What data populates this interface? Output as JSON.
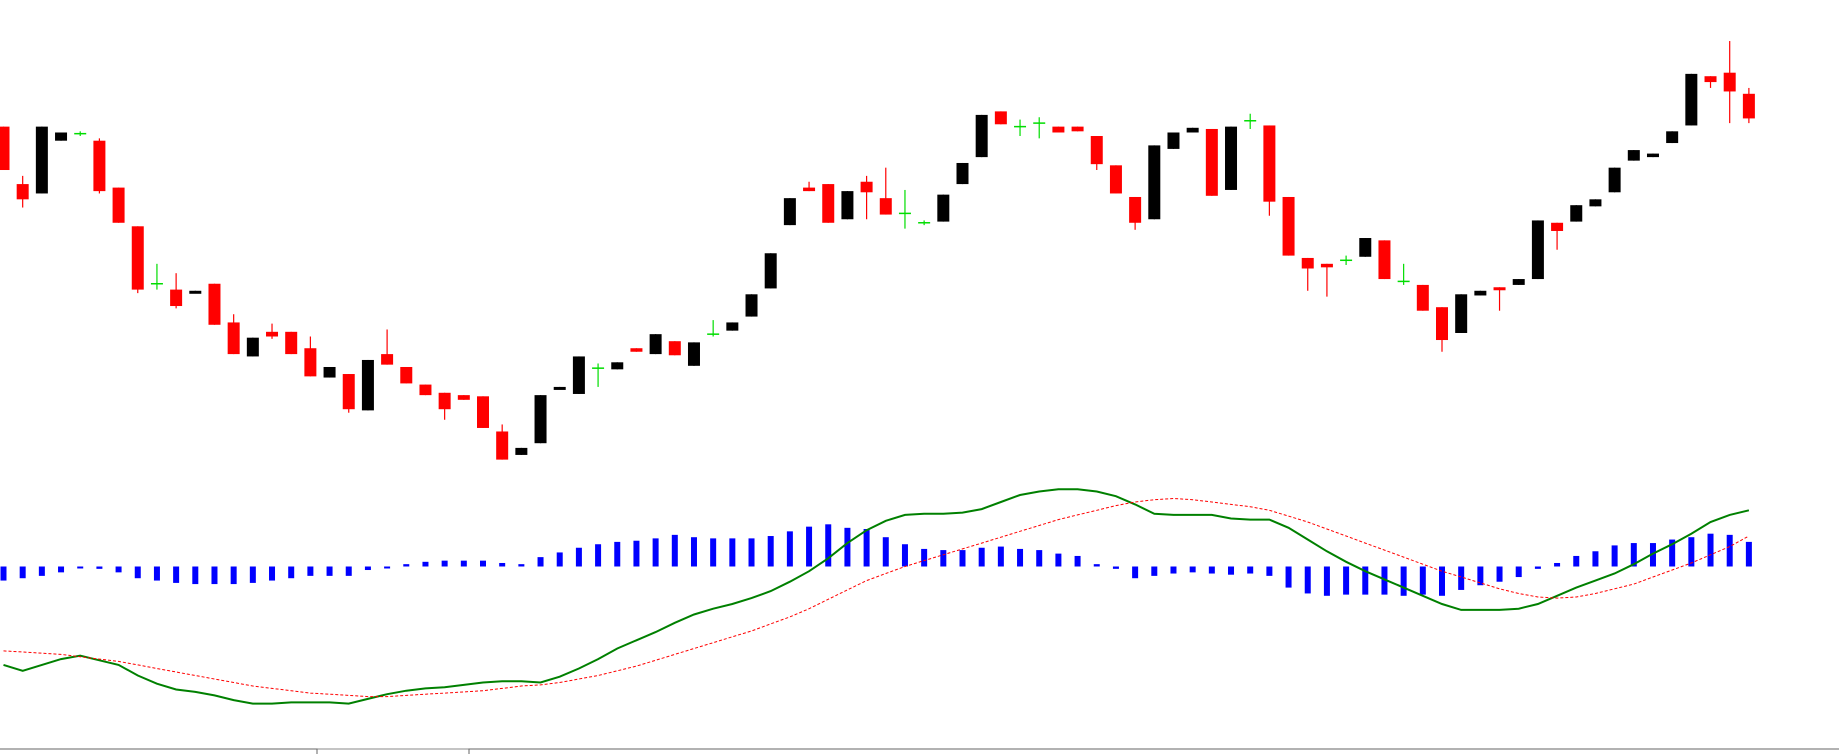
{
  "chart_data": [
    {
      "type": "candlestick",
      "ylim": [
        0,
        400
      ],
      "up_color": "#000000",
      "down_color": "#ff0000",
      "doji_color": "#00dd00",
      "open": [
        292,
        243,
        235,
        280,
        286,
        280,
        240,
        207,
        158,
        153,
        150,
        158,
        125,
        96,
        117,
        117,
        103,
        78,
        81,
        50,
        98,
        87,
        72,
        65,
        63,
        62,
        32,
        12,
        22,
        69,
        64,
        86,
        85,
        103,
        98,
        109,
        88,
        115,
        118,
        130,
        154,
        208,
        240,
        243,
        213,
        245,
        231,
        218,
        210,
        211,
        243,
        266,
        305,
        292,
        295,
        292,
        292,
        284,
        259,
        232,
        213,
        273,
        287,
        290,
        238,
        297,
        293,
        232,
        180,
        175,
        178,
        181,
        195,
        160,
        157,
        138,
        116,
        148,
        155,
        157,
        162,
        210,
        211,
        224,
        236,
        263,
        266,
        278,
        293,
        335,
        338,
        320
      ],
      "high": [
        292,
        250,
        292,
        287,
        288,
        282,
        240,
        207,
        175,
        167,
        152,
        158,
        132,
        112,
        124,
        117,
        113,
        87,
        81,
        93,
        119,
        87,
        72,
        65,
        63,
        62,
        38,
        18,
        63,
        70,
        96,
        90,
        91,
        103,
        115,
        109,
        108,
        127,
        125,
        149,
        184,
        231,
        245,
        243,
        237,
        250,
        257,
        238,
        212,
        234,
        261,
        302,
        305,
        298,
        300,
        292,
        292,
        284,
        259,
        232,
        276,
        287,
        291,
        290,
        292,
        303,
        293,
        232,
        180,
        175,
        182,
        197,
        195,
        175,
        157,
        138,
        149,
        152,
        155,
        162,
        212,
        210,
        225,
        230,
        257,
        272,
        269,
        288,
        337,
        335,
        365,
        325
      ],
      "low": [
        255,
        223,
        235,
        280,
        284,
        235,
        210,
        150,
        153,
        137,
        150,
        123,
        98,
        96,
        111,
        98,
        79,
        78,
        48,
        50,
        89,
        73,
        63,
        42,
        59,
        35,
        8,
        12,
        22,
        69,
        64,
        70,
        85,
        100,
        98,
        97,
        88,
        113,
        118,
        130,
        154,
        208,
        237,
        210,
        213,
        213,
        217,
        205,
        208,
        211,
        243,
        266,
        294,
        284,
        282,
        287,
        288,
        255,
        235,
        204,
        213,
        273,
        287,
        233,
        238,
        290,
        216,
        182,
        152,
        147,
        174,
        181,
        162,
        157,
        135,
        100,
        116,
        148,
        135,
        157,
        162,
        187,
        211,
        224,
        236,
        263,
        266,
        278,
        293,
        325,
        295,
        295
      ],
      "close": [
        255,
        230,
        292,
        287,
        286,
        237,
        210,
        153,
        158,
        139,
        152,
        123,
        98,
        112,
        113,
        98,
        79,
        87,
        51,
        93,
        89,
        73,
        63,
        51,
        59,
        35,
        8,
        18,
        63,
        70,
        96,
        86,
        91,
        100,
        115,
        97,
        108,
        115,
        125,
        149,
        184,
        231,
        237,
        210,
        237,
        236,
        217,
        218,
        210,
        234,
        261,
        302,
        294,
        292,
        295,
        287,
        288,
        260,
        235,
        210,
        276,
        287,
        291,
        233,
        292,
        297,
        228,
        182,
        171,
        172,
        178,
        197,
        162,
        160,
        135,
        110,
        149,
        152,
        154,
        162,
        212,
        203,
        225,
        230,
        257,
        272,
        269,
        288,
        337,
        330,
        322,
        299
      ]
    },
    {
      "type": "macd",
      "ylim": [
        -160,
        160
      ],
      "histogram": {
        "color": "#0000ff",
        "values": [
          -12,
          -10,
          -8,
          -5,
          -1,
          -2,
          -5,
          -10,
          -12,
          -14,
          -15,
          -15,
          -15,
          -14,
          -12,
          -10,
          -8,
          -8,
          -8,
          -3,
          -1,
          2,
          4,
          5,
          5,
          5,
          3,
          2,
          8,
          12,
          16,
          19,
          21,
          22,
          24,
          27,
          25,
          24,
          24,
          24,
          26,
          30,
          34,
          36,
          33,
          32,
          25,
          19,
          15,
          14,
          14,
          16,
          17,
          15,
          14,
          11,
          9,
          2,
          -2,
          -10,
          -8,
          -6,
          -5,
          -6,
          -7,
          -6,
          -8,
          -18,
          -23,
          -25,
          -24,
          -24,
          -24,
          -25,
          -24,
          -25,
          -20,
          -16,
          -13,
          -9,
          -2,
          3,
          9,
          13,
          18,
          20,
          20,
          23,
          25,
          28,
          27,
          21
        ]
      },
      "series": [
        {
          "color": "#008000",
          "dashed": false,
          "values": [
            -84,
            -89,
            -84,
            -79,
            -76,
            -80,
            -84,
            -93,
            -100,
            -105,
            -107,
            -110,
            -114,
            -117,
            -117,
            -116,
            -116,
            -116,
            -117,
            -113,
            -109,
            -106,
            -104,
            -103,
            -101,
            -99,
            -98,
            -98,
            -99,
            -94,
            -87,
            -79,
            -70,
            -63,
            -56,
            -48,
            -41,
            -36,
            -32,
            -27,
            -21,
            -13,
            -4,
            7,
            20,
            31,
            39,
            44,
            45,
            45,
            46,
            49,
            55,
            61,
            64,
            66,
            66,
            64,
            60,
            53,
            45,
            44,
            44,
            44,
            41,
            40,
            40,
            33,
            23,
            13,
            4,
            -4,
            -11,
            -18,
            -25,
            -32,
            -37,
            -37,
            -37,
            -36,
            -32,
            -25,
            -18,
            -12,
            -6,
            2,
            11,
            19,
            28,
            38,
            44,
            48
          ]
        },
        {
          "color": "#ff0000",
          "dashed": true,
          "values": [
            -72,
            -73,
            -74,
            -75,
            -77,
            -79,
            -81,
            -84,
            -87,
            -90,
            -93,
            -96,
            -99,
            -102,
            -104,
            -106,
            -108,
            -109,
            -110,
            -111,
            -111,
            -110,
            -109,
            -108,
            -107,
            -106,
            -104,
            -102,
            -101,
            -99,
            -96,
            -93,
            -89,
            -85,
            -80,
            -75,
            -70,
            -65,
            -60,
            -55,
            -49,
            -43,
            -36,
            -28,
            -20,
            -12,
            -6,
            0,
            5,
            10,
            15,
            20,
            25,
            30,
            35,
            40,
            44,
            48,
            52,
            55,
            57,
            58,
            57,
            55,
            53,
            51,
            48,
            43,
            38,
            32,
            26,
            20,
            14,
            8,
            2,
            -4,
            -9,
            -14,
            -19,
            -23,
            -26,
            -27,
            -26,
            -23,
            -19,
            -15,
            -9,
            -3,
            3,
            10,
            17,
            26
          ]
        }
      ]
    }
  ]
}
